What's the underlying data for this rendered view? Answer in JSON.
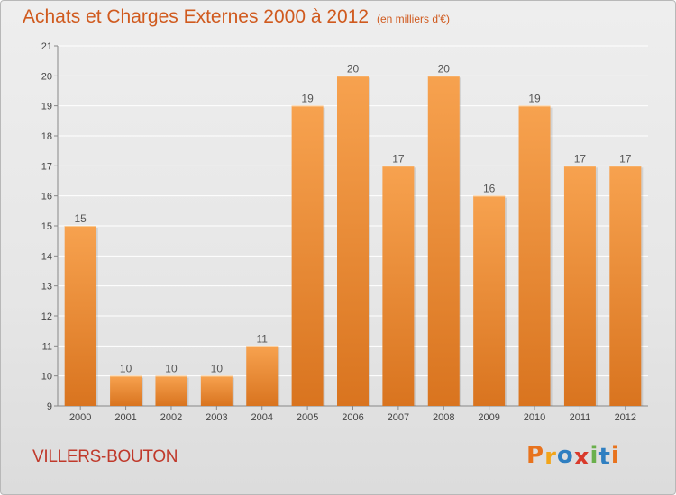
{
  "header": {
    "title": "Achats et Charges Externes 2000 à 2012",
    "subtitle": "(en milliers d'€)"
  },
  "footer": {
    "commune": "VILLERS-BOUTON",
    "logo": "Proxiti"
  },
  "colors": {
    "bar_light": "#f7a24f",
    "bar_dark": "#d9741f",
    "title": "#d05a1e",
    "commune": "#c0392b",
    "logo_letters": [
      "#e8731e",
      "#f2a51a",
      "#2f7fc1",
      "#d93a2b",
      "#6ab04c",
      "#2f7fc1",
      "#e8731e"
    ]
  },
  "chart_data": {
    "type": "bar",
    "categories": [
      "2000",
      "2001",
      "2002",
      "2003",
      "2004",
      "2005",
      "2006",
      "2007",
      "2008",
      "2009",
      "2010",
      "2011",
      "2012"
    ],
    "values": [
      15,
      10,
      10,
      10,
      11,
      19,
      20,
      17,
      20,
      16,
      19,
      17,
      17
    ],
    "title": "Achats et Charges Externes 2000 à 2012",
    "subtitle": "(en milliers d'€)",
    "xlabel": "",
    "ylabel": "",
    "ylim": [
      9,
      21
    ],
    "yticks": [
      9,
      10,
      11,
      12,
      13,
      14,
      15,
      16,
      17,
      18,
      19,
      20,
      21
    ],
    "grid": true,
    "data_labels": true
  }
}
